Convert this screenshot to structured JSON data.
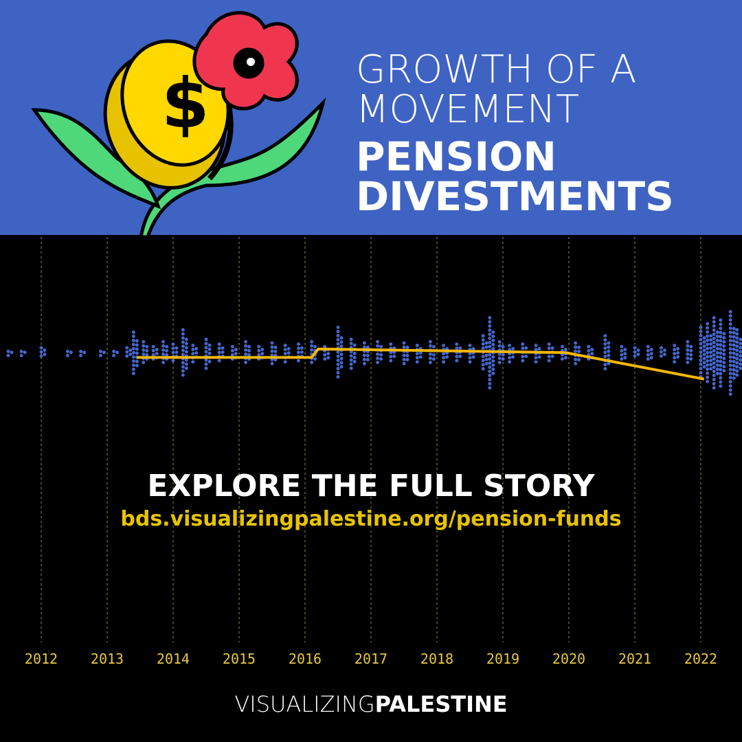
{
  "header": {
    "title_lines": [
      "GROWTH OF A",
      "MOVEMENT"
    ],
    "subtitle_lines": [
      "PENSION",
      "DIVESTMENTS"
    ]
  },
  "chart_data": {
    "type": "line",
    "xlim": [
      2011.375,
      2022.625
    ],
    "xticks": [
      2012,
      2013,
      2014,
      2015,
      2016,
      2017,
      2018,
      2019,
      2020,
      2021,
      2022
    ],
    "ylim": [
      -1,
      1
    ],
    "grid": true,
    "series": [
      {
        "kind": "swarm",
        "color": "#4466cc",
        "x": [
          2011.5,
          2011.7,
          2012.0,
          2012.4,
          2012.6,
          2012.9,
          2013.1,
          2013.3,
          2013.4,
          2013.55,
          2013.7,
          2013.85,
          2014.0,
          2014.15,
          2014.3,
          2014.5,
          2014.7,
          2014.9,
          2015.1,
          2015.3,
          2015.5,
          2015.7,
          2015.9,
          2016.1,
          2016.3,
          2016.5,
          2016.7,
          2016.9,
          2017.1,
          2017.3,
          2017.5,
          2017.7,
          2017.9,
          2018.1,
          2018.3,
          2018.5,
          2018.7,
          2018.8,
          2018.95,
          2019.1,
          2019.3,
          2019.5,
          2019.7,
          2019.9,
          2020.1,
          2020.3,
          2020.55,
          2020.8,
          2021.0,
          2021.2,
          2021.4,
          2021.6,
          2021.8,
          2022.0,
          2022.1,
          2022.2,
          2022.3,
          2022.45,
          2022.55
        ],
        "values": [
          0.02,
          0.02,
          0.05,
          0.02,
          0.02,
          0.02,
          0.02,
          0.05,
          0.18,
          0.1,
          0.06,
          0.1,
          0.08,
          0.2,
          0.07,
          0.12,
          0.08,
          0.06,
          0.1,
          0.06,
          0.09,
          0.07,
          0.08,
          0.1,
          0.06,
          0.22,
          0.12,
          0.09,
          0.1,
          0.08,
          0.09,
          0.07,
          0.1,
          0.07,
          0.08,
          0.07,
          0.15,
          0.3,
          0.1,
          0.07,
          0.08,
          0.07,
          0.08,
          0.06,
          0.09,
          0.06,
          0.15,
          0.06,
          0.05,
          0.06,
          0.05,
          0.07,
          0.1,
          0.22,
          0.25,
          0.3,
          0.28,
          0.35,
          0.2
        ]
      },
      {
        "kind": "line",
        "color": "#f2b705",
        "x": [
          2013.45,
          2016.1,
          2016.2,
          2019.95,
          2022.05
        ],
        "values": [
          -0.03,
          -0.03,
          0.04,
          0.01,
          -0.21
        ]
      }
    ]
  },
  "cta": {
    "heading": "EXPLORE THE FULL STORY",
    "url": "bds.visualizingpalestine.org/pension-funds"
  },
  "footer": {
    "brand_light": "VISUALIZING",
    "brand_bold": "PALESTINE"
  }
}
